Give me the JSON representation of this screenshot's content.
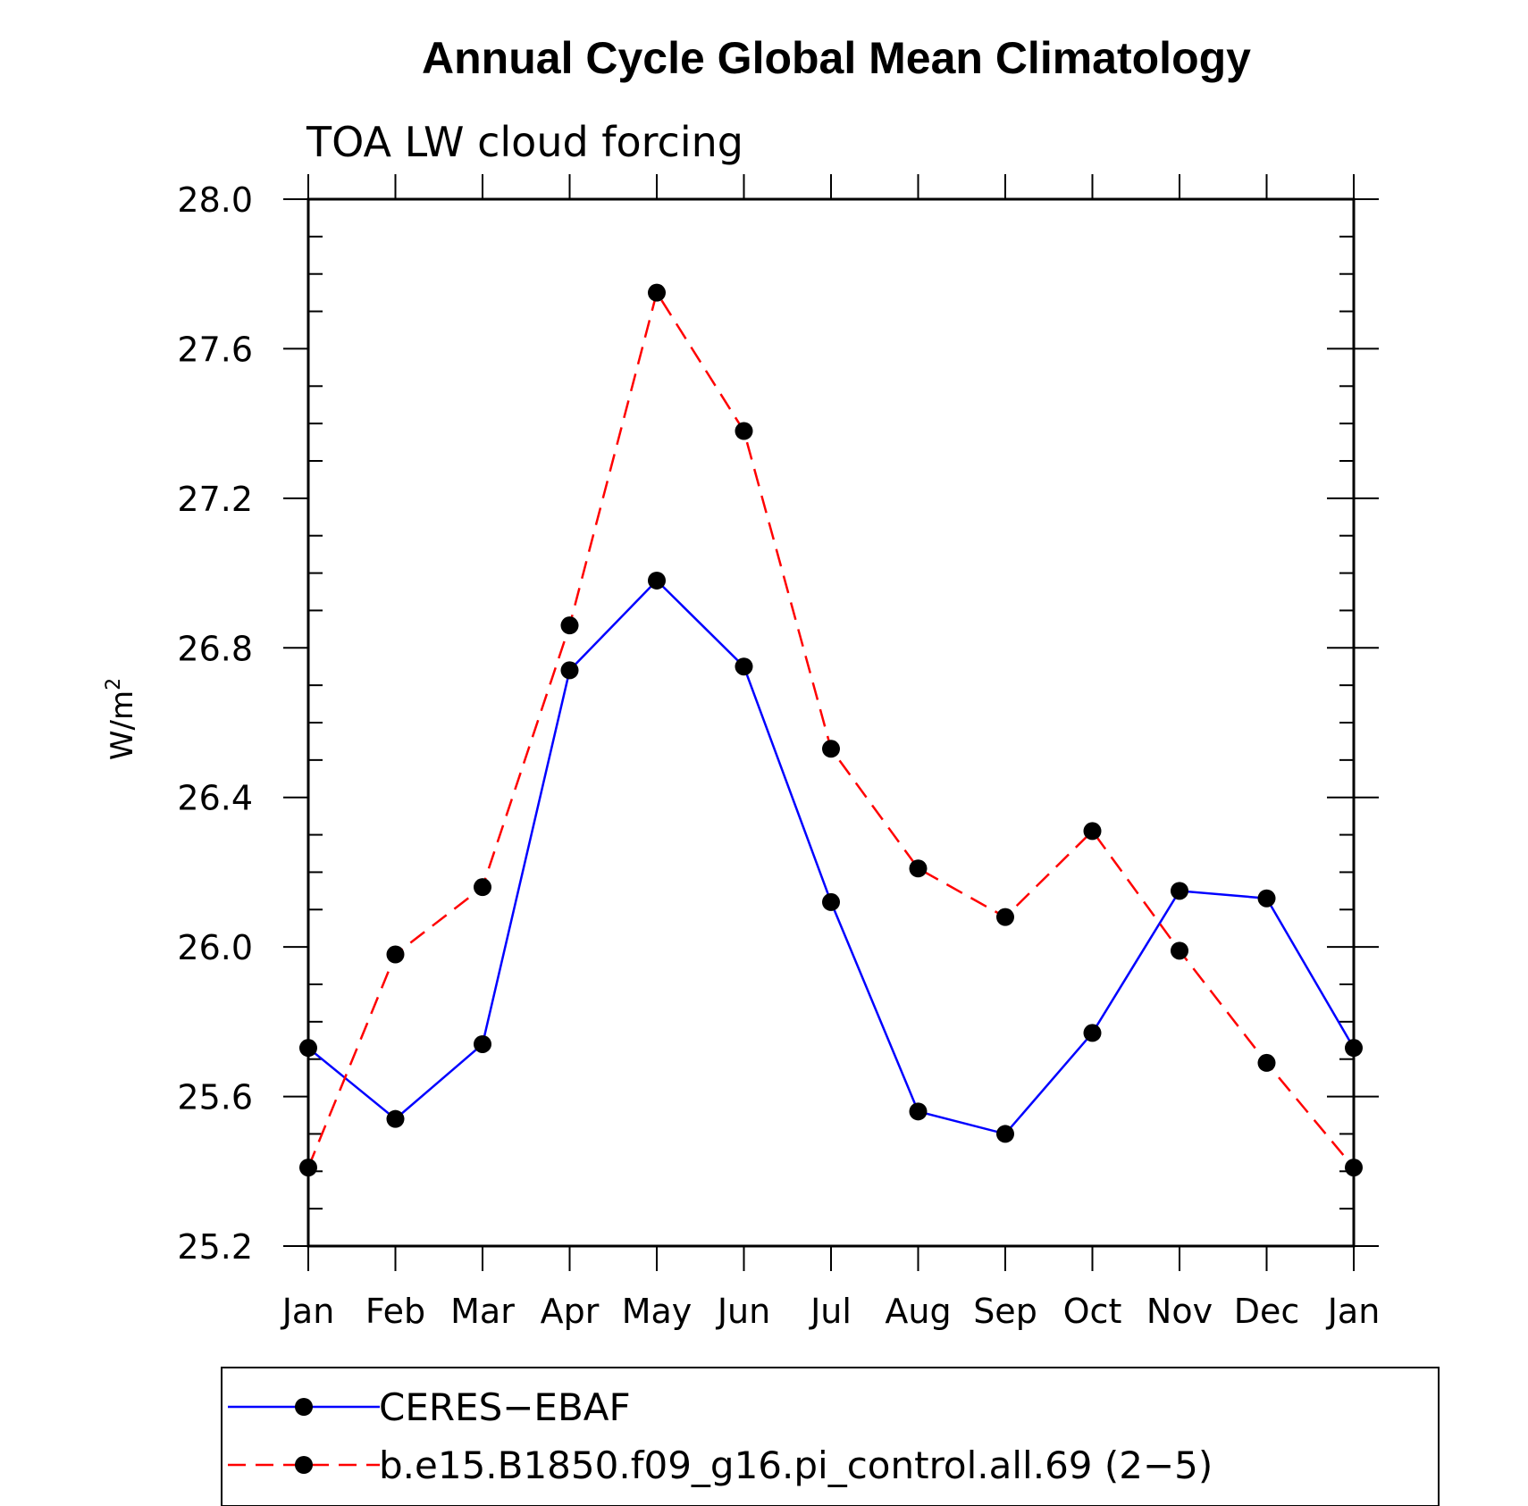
{
  "chart_data": {
    "type": "line",
    "title": "Annual Cycle Global Mean Climatology",
    "subtitle": "TOA LW cloud forcing",
    "ylabel": "W/m",
    "ylabel_superscript": "2",
    "xlabel": "",
    "categories": [
      "Jan",
      "Feb",
      "Mar",
      "Apr",
      "May",
      "Jun",
      "Jul",
      "Aug",
      "Sep",
      "Oct",
      "Nov",
      "Dec",
      "Jan"
    ],
    "ylim": [
      25.2,
      28.0
    ],
    "yticks": [
      "25.2",
      "25.6",
      "26.0",
      "26.4",
      "26.8",
      "27.2",
      "27.6",
      "28.0"
    ],
    "series": [
      {
        "name": "CERES−EBAF",
        "color": "#0000ff",
        "dash": "solid",
        "values": [
          25.73,
          25.54,
          25.74,
          26.74,
          26.98,
          26.75,
          26.12,
          25.56,
          25.5,
          25.77,
          26.15,
          26.13,
          25.73
        ]
      },
      {
        "name": "b.e15.B1850.f09_g16.pi_control.all.69 (2−5)",
        "color": "#ff0000",
        "dash": "dashed",
        "values": [
          25.41,
          25.98,
          26.16,
          26.86,
          27.75,
          27.38,
          26.53,
          26.21,
          26.08,
          26.31,
          25.99,
          25.69,
          25.41
        ]
      }
    ],
    "legend_position": "bottom"
  }
}
